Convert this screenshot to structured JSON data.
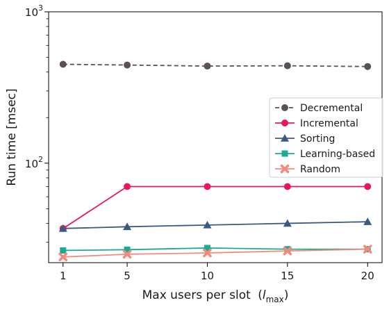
{
  "chart_data": {
    "type": "line",
    "title": "",
    "xlabel": "Max users per slot",
    "xlabel_math": {
      "base": "l",
      "sub": "max"
    },
    "xlabel_suffix": ")",
    "ylabel": "Run time [msec]",
    "x": [
      1,
      5,
      10,
      15,
      20
    ],
    "x_ticks": [
      "1",
      "5",
      "10",
      "15",
      "20"
    ],
    "y_scale": "log",
    "ylim": [
      22,
      1000
    ],
    "y_ticks": [
      {
        "value": 100,
        "base": "10",
        "exp": "2"
      },
      {
        "value": 1000,
        "base": "10",
        "exp": "3"
      }
    ],
    "grid": false,
    "legend_position": "right",
    "series": [
      {
        "name": "Decremental",
        "color": "#5a5055",
        "marker": "circle",
        "dash": true,
        "values": [
          450,
          445,
          438,
          440,
          435
        ]
      },
      {
        "name": "Incremental",
        "color": "#e8175d",
        "marker": "circle",
        "dash": false,
        "values": [
          37,
          70,
          70,
          70,
          70
        ]
      },
      {
        "name": "Sorting",
        "color": "#3c5a80",
        "marker": "triangle",
        "dash": false,
        "values": [
          37,
          38,
          39,
          40,
          41
        ]
      },
      {
        "name": "Learning-based",
        "color": "#1aab95",
        "marker": "square",
        "dash": false,
        "values": [
          26.5,
          26.8,
          27.5,
          27,
          27
        ]
      },
      {
        "name": "Random",
        "color": "#f48a7e",
        "marker": "x",
        "dash": false,
        "values": [
          24,
          25,
          25.5,
          26.3,
          27
        ]
      }
    ]
  }
}
